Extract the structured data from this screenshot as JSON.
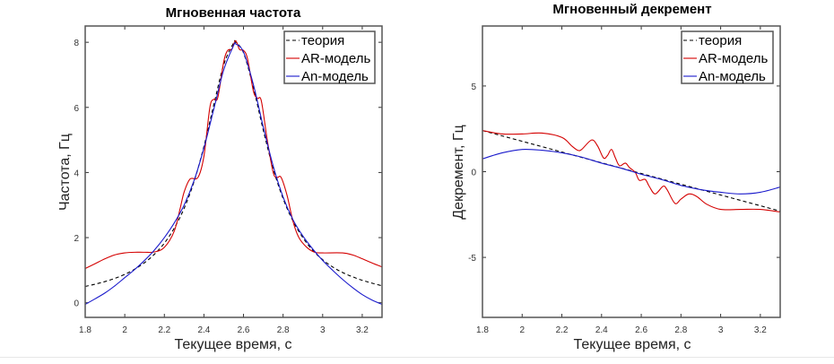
{
  "chart_data": [
    {
      "type": "line",
      "title": "Мгновенная частота",
      "xlabel": "Текущее время, с",
      "ylabel": "Частота, Гц",
      "xlim": [
        1.8,
        3.3
      ],
      "ylim": [
        -0.45,
        8.5
      ],
      "xticks": [
        1.8,
        2,
        2.2,
        2.4,
        2.6,
        2.8,
        3,
        3.2
      ],
      "xtick_labels": [
        "1.8",
        "2",
        "2.2",
        "2.4",
        "2.6",
        "2.8",
        "3",
        "3.2"
      ],
      "yticks": [
        0,
        2,
        4,
        6,
        8
      ],
      "ytick_labels": [
        "0",
        "2",
        "4",
        "6",
        "8"
      ],
      "grid": false,
      "legend_position": "top-right",
      "series": [
        {
          "name": "теория",
          "color": "#000000",
          "style": "dashed",
          "x": [
            1.8,
            1.85,
            1.9,
            1.95,
            2.0,
            2.05,
            2.1,
            2.15,
            2.2,
            2.25,
            2.3,
            2.35,
            2.4,
            2.45,
            2.5,
            2.55,
            2.56,
            2.6,
            2.65,
            2.7,
            2.75,
            2.8,
            2.85,
            2.9,
            2.95,
            3.0,
            3.05,
            3.1,
            3.15,
            3.2,
            3.25,
            3.3
          ],
          "y": [
            0.5,
            0.57,
            0.65,
            0.75,
            0.87,
            1.03,
            1.23,
            1.49,
            1.83,
            2.29,
            2.9,
            3.72,
            4.8,
            6.08,
            7.31,
            7.98,
            8.0,
            7.68,
            6.61,
            5.3,
            4.12,
            3.2,
            2.51,
            2.0,
            1.61,
            1.32,
            1.1,
            0.93,
            0.8,
            0.69,
            0.6,
            0.52
          ]
        },
        {
          "name": "AR-модель",
          "color": "#d40000",
          "style": "solid",
          "x": [
            1.8,
            1.85,
            1.9,
            1.95,
            2.0,
            2.05,
            2.1,
            2.15,
            2.2,
            2.25,
            2.28,
            2.3,
            2.33,
            2.37,
            2.4,
            2.43,
            2.45,
            2.47,
            2.5,
            2.52,
            2.54,
            2.56,
            2.58,
            2.6,
            2.62,
            2.65,
            2.67,
            2.69,
            2.72,
            2.75,
            2.77,
            2.79,
            2.82,
            2.85,
            2.88,
            2.92,
            2.96,
            3.0,
            3.1,
            3.15,
            3.2,
            3.25,
            3.3
          ],
          "y": [
            1.05,
            1.2,
            1.35,
            1.47,
            1.53,
            1.55,
            1.55,
            1.56,
            1.7,
            2.2,
            2.9,
            3.4,
            3.8,
            3.85,
            4.5,
            6.0,
            6.25,
            6.3,
            7.4,
            7.75,
            7.78,
            8.05,
            7.78,
            7.75,
            7.5,
            6.5,
            6.28,
            6.2,
            5.0,
            4.0,
            3.85,
            3.85,
            3.3,
            2.5,
            2.0,
            1.7,
            1.55,
            1.53,
            1.53,
            1.47,
            1.35,
            1.22,
            1.1
          ]
        },
        {
          "name": "An-модель",
          "color": "#1a1acc",
          "style": "solid",
          "x": [
            1.8,
            1.85,
            1.9,
            1.95,
            2.0,
            2.05,
            2.1,
            2.15,
            2.2,
            2.25,
            2.3,
            2.35,
            2.4,
            2.45,
            2.5,
            2.55,
            2.56,
            2.6,
            2.65,
            2.7,
            2.75,
            2.8,
            2.85,
            2.9,
            2.95,
            3.0,
            3.05,
            3.1,
            3.15,
            3.2,
            3.25,
            3.3
          ],
          "y": [
            -0.05,
            0.12,
            0.3,
            0.52,
            0.77,
            1.02,
            1.3,
            1.62,
            2.0,
            2.45,
            3.0,
            3.75,
            4.75,
            5.95,
            7.15,
            7.9,
            7.95,
            7.7,
            6.7,
            5.4,
            4.2,
            3.25,
            2.55,
            2.05,
            1.65,
            1.3,
            1.0,
            0.72,
            0.47,
            0.25,
            0.08,
            -0.05
          ]
        }
      ]
    },
    {
      "type": "line",
      "title": "Мгновенный декремент",
      "xlabel": "Текущее время, с",
      "ylabel": "Декремент, Гц",
      "xlim": [
        1.8,
        3.3
      ],
      "ylim": [
        -8.5,
        8.5
      ],
      "xticks": [
        1.8,
        2,
        2.2,
        2.4,
        2.6,
        2.8,
        3,
        3.2
      ],
      "xtick_labels": [
        "1.8",
        "2",
        "2.2",
        "2.4",
        "2.6",
        "2.8",
        "3",
        "3.2"
      ],
      "yticks": [
        -5,
        0,
        5
      ],
      "ytick_labels": [
        "-5",
        "0",
        "5"
      ],
      "grid": false,
      "legend_position": "top-right",
      "series": [
        {
          "name": "теория",
          "color": "#000000",
          "style": "dashed",
          "x": [
            1.8,
            3.3
          ],
          "y": [
            2.4,
            -2.3
          ]
        },
        {
          "name": "AR-модель",
          "color": "#d40000",
          "style": "solid",
          "x": [
            1.8,
            1.9,
            2.0,
            2.1,
            2.2,
            2.25,
            2.28,
            2.3,
            2.35,
            2.38,
            2.41,
            2.43,
            2.45,
            2.47,
            2.49,
            2.52,
            2.54,
            2.57,
            2.59,
            2.62,
            2.64,
            2.67,
            2.71,
            2.73,
            2.77,
            2.8,
            2.84,
            2.88,
            2.93,
            3.0,
            3.1,
            3.2,
            3.3
          ],
          "y": [
            2.4,
            2.2,
            2.2,
            2.25,
            2.0,
            1.5,
            1.25,
            1.3,
            1.85,
            1.5,
            0.8,
            0.95,
            1.3,
            0.8,
            0.35,
            0.5,
            0.25,
            -0.05,
            -0.5,
            -0.45,
            -0.85,
            -1.3,
            -0.85,
            -1.05,
            -1.85,
            -1.6,
            -1.3,
            -1.45,
            -1.9,
            -2.2,
            -2.2,
            -2.2,
            -2.35
          ]
        },
        {
          "name": "An-модель",
          "color": "#1a1acc",
          "style": "solid",
          "x": [
            1.8,
            1.9,
            2.0,
            2.1,
            2.2,
            2.3,
            2.4,
            2.5,
            2.6,
            2.7,
            2.8,
            2.9,
            3.0,
            3.1,
            3.2,
            3.3
          ],
          "y": [
            0.75,
            1.1,
            1.3,
            1.25,
            1.1,
            0.85,
            0.5,
            0.2,
            -0.15,
            -0.45,
            -0.8,
            -1.05,
            -1.2,
            -1.3,
            -1.2,
            -0.9
          ]
        }
      ]
    }
  ]
}
